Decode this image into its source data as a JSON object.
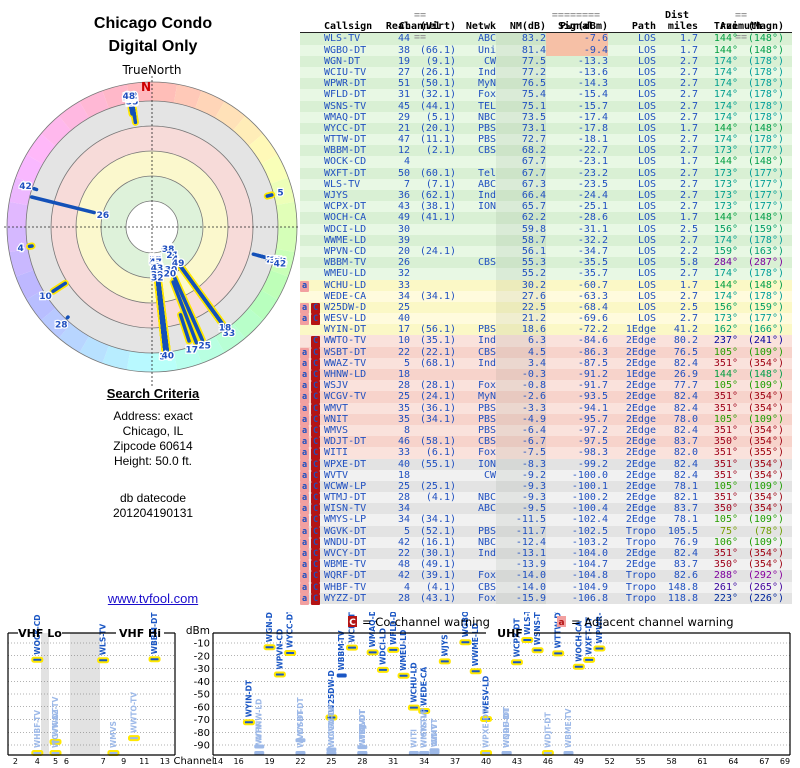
{
  "header": {
    "title_line1": "Chicago Condo",
    "title_line2": "Digital Only",
    "north_label": "TrueNorth",
    "north_marker": "N"
  },
  "search_criteria": {
    "heading": "Search Criteria",
    "lines": [
      "Address: exact",
      "Chicago, IL",
      "Zipcode 60614",
      "Height: 50.0 ft."
    ],
    "db_label": "db datecode",
    "db_value": "201204190131"
  },
  "link": {
    "label": "www.tvfool.com"
  },
  "table": {
    "group_headers": {
      "channel": "Channel",
      "signal": "Signal",
      "dist": "Dist",
      "azimuth": "Azimuth"
    },
    "eq": {
      "double": "==",
      "long": "========"
    },
    "columns": [
      "Callsign",
      "Real",
      "(Virt)",
      "Netwk",
      "NM(dB)",
      "Pwr(dBm)",
      "Path",
      "miles",
      "True",
      "(Magn)"
    ]
  },
  "legend": {
    "co_badge": "C",
    "co_text": "= Co-channel warning",
    "adj_badge": "a",
    "adj_text": "= Adjacent channel warning"
  },
  "bottom_chart": {
    "ylabel": "dBm",
    "xlabel": "Channel",
    "sections": [
      "VHF Lo",
      "VHF Hi",
      "UHF"
    ],
    "y_ticks": [
      -10,
      -20,
      -30,
      -40,
      -50,
      -60,
      -70,
      -80,
      -90
    ],
    "vhf_ticks": [
      2,
      4,
      5,
      6,
      7,
      9,
      11,
      13
    ],
    "uhf_ticks": [
      14,
      16,
      19,
      22,
      25,
      28,
      31,
      34,
      37,
      40,
      43,
      46,
      49,
      52,
      55,
      58,
      61,
      64,
      67,
      69
    ]
  },
  "colors": {
    "station_blue": "#2050c0",
    "marker_strong": "#1a56c4",
    "marker_weak": "#9db9e8",
    "halo_yellow": "#ffe800",
    "badge_c_bg": "#b41414",
    "badge_a_bg": "#f2a0a0",
    "north_red": "#cc0000",
    "link_blue": "#1a0dcc"
  },
  "chart_data": {
    "type": "table",
    "title": "Chicago Condo - Digital Only (TV signal analysis: station table, azimuth radar plot, power-by-channel plot)",
    "stations_fields": [
      "callsign",
      "real_ch",
      "virt_ch",
      "network",
      "nm_db",
      "pwr_dbm",
      "path",
      "dist_miles",
      "az_true_deg",
      "az_magn_deg",
      "band",
      "warnings",
      "halo",
      "pwr_overload"
    ],
    "stations": [
      [
        "WLS-TV",
        44,
        null,
        "ABC",
        83.2,
        -7.6,
        "LOS",
        1.7,
        144,
        148,
        "green",
        "",
        true,
        true
      ],
      [
        "WGBO-DT",
        38,
        66.1,
        "Uni",
        81.4,
        -9.4,
        "LOS",
        1.7,
        144,
        148,
        "green",
        "",
        true,
        true
      ],
      [
        "WGN-DT",
        19,
        9.1,
        "CW",
        77.5,
        -13.3,
        "LOS",
        2.7,
        174,
        178,
        "green",
        "",
        true,
        false
      ],
      [
        "WCIU-TV",
        27,
        26.1,
        "Ind",
        77.2,
        -13.6,
        "LOS",
        2.7,
        174,
        178,
        "green",
        "",
        true,
        false
      ],
      [
        "WPWR-DT",
        51,
        50.1,
        "MyN",
        76.5,
        -14.3,
        "LOS",
        2.7,
        174,
        178,
        "green",
        "",
        true,
        false
      ],
      [
        "WFLD-DT",
        31,
        32.1,
        "Fox",
        75.4,
        -15.4,
        "LOS",
        2.7,
        174,
        178,
        "green",
        "",
        true,
        false
      ],
      [
        "WSNS-TV",
        45,
        44.1,
        "TEL",
        75.1,
        -15.7,
        "LOS",
        2.7,
        174,
        178,
        "green",
        "",
        true,
        false
      ],
      [
        "WMAQ-DT",
        29,
        5.1,
        "NBC",
        73.5,
        -17.4,
        "LOS",
        2.7,
        174,
        178,
        "green",
        "",
        true,
        false
      ],
      [
        "WYCC-DT",
        21,
        20.1,
        "PBS",
        73.1,
        -17.8,
        "LOS",
        1.7,
        144,
        148,
        "green",
        "",
        true,
        false
      ],
      [
        "WTTW-DT",
        47,
        11.1,
        "PBS",
        72.7,
        -18.1,
        "LOS",
        2.7,
        174,
        178,
        "green",
        "",
        true,
        false
      ],
      [
        "WBBM-DT",
        12,
        2.1,
        "CBS",
        68.2,
        -22.7,
        "LOS",
        2.7,
        173,
        177,
        "green",
        "",
        true,
        false
      ],
      [
        "WOCK-CD",
        4,
        null,
        null,
        67.7,
        -23.1,
        "LOS",
        1.7,
        144,
        148,
        "green",
        "",
        true,
        false
      ],
      [
        "WXFT-DT",
        50,
        60.1,
        "Tel",
        67.7,
        -23.2,
        "LOS",
        2.7,
        173,
        177,
        "green",
        "",
        true,
        false
      ],
      [
        "WLS-TV",
        7,
        7.1,
        "ABC",
        67.3,
        -23.5,
        "LOS",
        2.7,
        173,
        177,
        "green",
        "",
        true,
        false
      ],
      [
        "WJYS",
        36,
        62.1,
        "Ind",
        66.4,
        -24.4,
        "LOS",
        2.7,
        173,
        177,
        "green",
        "",
        true,
        false
      ],
      [
        "WCPX-DT",
        43,
        38.1,
        "ION",
        65.7,
        -25.1,
        "LOS",
        2.7,
        173,
        177,
        "green",
        "",
        true,
        false
      ],
      [
        "WOCH-CA",
        49,
        41.1,
        null,
        62.2,
        -28.6,
        "LOS",
        1.7,
        144,
        148,
        "green",
        "",
        true,
        false
      ],
      [
        "WDCI-LD",
        30,
        null,
        null,
        59.8,
        -31.1,
        "LOS",
        2.5,
        156,
        159,
        "green",
        "",
        true,
        false
      ],
      [
        "WWME-LD",
        39,
        null,
        null,
        58.7,
        -32.2,
        "LOS",
        2.7,
        174,
        178,
        "green",
        "",
        true,
        false
      ],
      [
        "WPVN-CD",
        20,
        24.1,
        null,
        56.1,
        -34.7,
        "LOS",
        2.2,
        159,
        163,
        "green",
        "",
        true,
        false
      ],
      [
        "WBBM-TV",
        26,
        null,
        "CBS",
        55.3,
        -35.5,
        "LOS",
        5.8,
        284,
        287,
        "green",
        "",
        false,
        false
      ],
      [
        "WMEU-LD",
        32,
        null,
        null,
        55.2,
        -35.7,
        "LOS",
        2.7,
        174,
        178,
        "green",
        "",
        true,
        false
      ],
      [
        "WCHU-LD",
        33,
        null,
        null,
        30.2,
        -60.7,
        "LOS",
        1.7,
        144,
        148,
        "yellow",
        "a",
        true,
        false
      ],
      [
        "WEDE-CA",
        34,
        34.1,
        null,
        27.6,
        -63.3,
        "LOS",
        2.7,
        174,
        178,
        "yellow",
        "",
        true,
        false
      ],
      [
        "W25DW-D",
        25,
        null,
        null,
        22.5,
        -68.4,
        "LOS",
        2.5,
        156,
        159,
        "yellow",
        "aC",
        true,
        false
      ],
      [
        "WESV-LD",
        40,
        null,
        null,
        21.2,
        -69.6,
        "LOS",
        2.7,
        173,
        177,
        "yellow",
        "aC",
        true,
        false
      ],
      [
        "WYIN-DT",
        17,
        56.1,
        "PBS",
        18.6,
        -72.2,
        "1Edge",
        41.2,
        162,
        166,
        "yellow",
        "",
        true,
        false
      ],
      [
        "WWTO-TV",
        10,
        35.1,
        "Ind",
        6.3,
        -84.6,
        "2Edge",
        80.2,
        237,
        241,
        "pink",
        "C",
        true,
        false
      ],
      [
        "WSBT-DT",
        22,
        22.1,
        "CBS",
        4.5,
        -86.3,
        "2Edge",
        76.5,
        105,
        109,
        "pink",
        "aC",
        false,
        false
      ],
      [
        "WWAZ-TV",
        5,
        68.1,
        "Ind",
        3.4,
        -87.5,
        "2Edge",
        82.4,
        351,
        354,
        "pink",
        "aC",
        true,
        false
      ],
      [
        "WHNW-LD",
        18,
        null,
        null,
        -0.3,
        -91.2,
        "1Edge",
        26.9,
        144,
        148,
        "pink",
        "aC",
        false,
        false
      ],
      [
        "WSJV",
        28,
        28.1,
        "Fox",
        -0.8,
        -91.7,
        "2Edge",
        77.7,
        105,
        109,
        "pink",
        "aC",
        false,
        false
      ],
      [
        "WCGV-TV",
        25,
        24.1,
        "MyN",
        -2.6,
        -93.5,
        "2Edge",
        82.4,
        351,
        354,
        "pink",
        "aC",
        false,
        false
      ],
      [
        "WMVT",
        35,
        36.1,
        "PBS",
        -3.3,
        -94.1,
        "2Edge",
        82.4,
        351,
        354,
        "pink",
        "aC",
        false,
        false
      ],
      [
        "WNIT",
        35,
        34.1,
        "PBS",
        -4.9,
        -95.7,
        "2Edge",
        78.0,
        105,
        109,
        "pink",
        "aC",
        false,
        false
      ],
      [
        "WMVS",
        8,
        null,
        "PBS",
        -6.4,
        -97.2,
        "2Edge",
        82.4,
        351,
        354,
        "pink",
        "aC",
        true,
        false
      ],
      [
        "WDJT-DT",
        46,
        58.1,
        "CBS",
        -6.7,
        -97.5,
        "2Edge",
        83.7,
        350,
        354,
        "pink",
        "aC",
        true,
        false
      ],
      [
        "WITI",
        33,
        6.1,
        "Fox",
        -7.5,
        -98.3,
        "2Edge",
        82.0,
        351,
        355,
        "pink",
        "aC",
        false,
        false
      ],
      [
        "WPXE-DT",
        40,
        55.1,
        "ION",
        -8.3,
        -99.2,
        "2Edge",
        82.4,
        351,
        354,
        "gray",
        "aC",
        true,
        false
      ],
      [
        "WVTV",
        18,
        null,
        "CW",
        -9.2,
        -100.0,
        "2Edge",
        82.4,
        351,
        354,
        "gray",
        "aC",
        false,
        false
      ],
      [
        "WCWW-LP",
        25,
        25.1,
        null,
        -9.3,
        -100.1,
        "2Edge",
        78.1,
        105,
        109,
        "gray",
        "aC",
        false,
        false
      ],
      [
        "WTMJ-DT",
        28,
        4.1,
        "NBC",
        -9.3,
        -100.2,
        "2Edge",
        82.1,
        351,
        354,
        "gray",
        "aC",
        false,
        false
      ],
      [
        "WISN-TV",
        34,
        null,
        "ABC",
        -9.5,
        -100.4,
        "2Edge",
        83.7,
        350,
        354,
        "gray",
        "aC",
        false,
        false
      ],
      [
        "WMYS-LP",
        34,
        34.1,
        null,
        -11.5,
        -102.4,
        "2Edge",
        78.1,
        105,
        109,
        "gray",
        "aC",
        false,
        false
      ],
      [
        "WGVK-DT",
        5,
        52.1,
        "PBS",
        -11.7,
        -102.5,
        "Tropo",
        105.5,
        75,
        78,
        "gray",
        "aC",
        true,
        false
      ],
      [
        "WNDU-DT",
        42,
        16.1,
        "NBC",
        -12.4,
        -103.2,
        "Tropo",
        76.9,
        106,
        109,
        "gray",
        "aC",
        false,
        false
      ],
      [
        "WVCY-DT",
        22,
        30.1,
        "Ind",
        -13.1,
        -104.0,
        "2Edge",
        82.4,
        351,
        354,
        "gray",
        "aC",
        false,
        false
      ],
      [
        "WBME-TV",
        48,
        49.1,
        null,
        -13.9,
        -104.7,
        "2Edge",
        83.7,
        350,
        354,
        "gray",
        "aC",
        false,
        false
      ],
      [
        "WQRF-DT",
        42,
        39.1,
        "Fox",
        -14.0,
        -104.8,
        "Tropo",
        82.6,
        288,
        292,
        "gray",
        "aC",
        false,
        false
      ],
      [
        "WHBF-TV",
        4,
        4.1,
        "CBS",
        -14.0,
        -104.9,
        "Tropo",
        148.8,
        261,
        265,
        "gray",
        "aC",
        true,
        false
      ],
      [
        "WYZZ-DT",
        28,
        43.1,
        "Fox",
        -15.9,
        -106.8,
        "Tropo",
        118.8,
        223,
        226,
        "gray",
        "aC",
        false,
        false
      ]
    ],
    "radar": {
      "type": "radar",
      "angular_axis": "true azimuth (degrees, N=0 at top)",
      "radial_axis": "signal power dBm (stronger toward center)",
      "point_labels": "real RF channel numbers"
    },
    "dbm_chart": {
      "type": "scatter",
      "xlabel": "Channel",
      "ylabel": "dBm",
      "ylim": [
        -97,
        0
      ],
      "x_sections": [
        "VHF Lo (ch 2-6)",
        "VHF Hi (ch 7-13)",
        "UHF (ch 14-69)"
      ],
      "series_note": "one marker per station at (real_ch, pwr_dbm)"
    }
  }
}
